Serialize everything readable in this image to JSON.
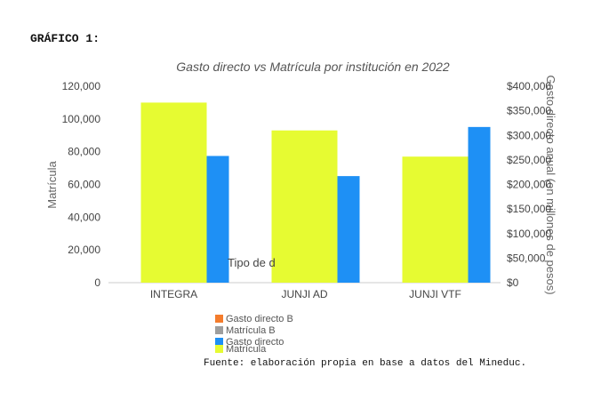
{
  "heading": "GRÁFICO 1:",
  "source": "Fuente: elaboración propia en base a datos del Mineduc.",
  "chart_data": {
    "type": "bar",
    "title": "Gasto directo vs Matrícula por institución en 2022",
    "categories": [
      "INTEGRA",
      "JUNJI AD",
      "JUNJI VTF"
    ],
    "series": [
      {
        "name": "Matrícula",
        "axis": "left",
        "color": "#e6fb32",
        "values": [
          110000,
          93000,
          77000
        ]
      },
      {
        "name": "Gasto directo",
        "axis": "right",
        "color": "#1e90f5",
        "values": [
          258000000,
          217000000,
          317000000
        ]
      }
    ],
    "ylabel": "Matrícula",
    "ylabel_right": "Gasto directo anual (en millones de pesos)",
    "ylim": [
      0,
      120000
    ],
    "ylim_right": [
      0,
      400000000
    ],
    "yticks": [
      "0",
      "20,000",
      "40,000",
      "60,000",
      "80,000",
      "100,000",
      "120,000"
    ],
    "yticks_right": [
      "$0",
      "$50,000",
      "$100,000",
      "$150,000",
      "$200,000",
      "$250,000",
      "$300,000",
      "$350,000",
      "$400,000"
    ],
    "annotation": "Tipo de d",
    "legend": [
      {
        "label": "Gasto directo B",
        "color": "#f47c2c"
      },
      {
        "label": "Matrícula B",
        "color": "#9e9e9e"
      },
      {
        "label": "Gasto directo",
        "color": "#1e90f5"
      },
      {
        "label": "Matrícula",
        "color": "#e6fb32"
      }
    ],
    "legend_position": "bottom",
    "grid": false
  }
}
